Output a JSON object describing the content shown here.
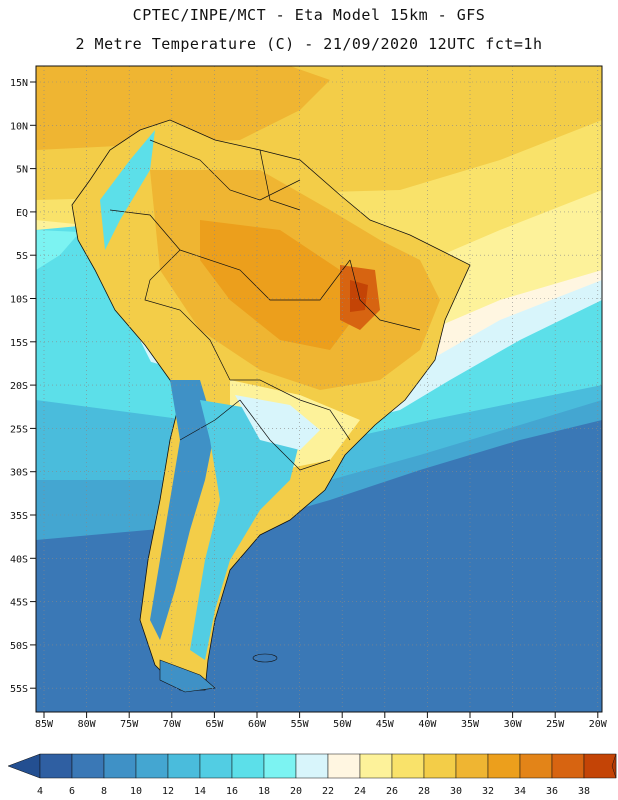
{
  "header": {
    "line1": "CPTEC/INPE/MCT -  Eta Model 15km - GFS",
    "line2": "2 Metre Temperature (C) - 21/09/2020 12UTC fct=1h"
  },
  "map": {
    "lat_labels": [
      "15N",
      "10N",
      "5N",
      "EQ",
      "5S",
      "10S",
      "15S",
      "20S",
      "25S",
      "30S",
      "35S",
      "40S",
      "45S",
      "50S",
      "55S"
    ],
    "lon_labels": [
      "85W",
      "80W",
      "75W",
      "70W",
      "65W",
      "60W",
      "55W",
      "50W",
      "45W",
      "40W",
      "35W",
      "30W",
      "25W",
      "20W"
    ]
  },
  "legend": {
    "values": [
      "4",
      "6",
      "8",
      "10",
      "12",
      "14",
      "16",
      "18",
      "20",
      "22",
      "24",
      "26",
      "28",
      "30",
      "32",
      "34",
      "36",
      "38"
    ],
    "colors": [
      "#2f5fa2",
      "#3a78b6",
      "#3f91c6",
      "#44a6d1",
      "#4abcdc",
      "#52cde3",
      "#5cdfe9",
      "#7cf3f2",
      "#d8f5fb",
      "#fff6e1",
      "#fdf29a",
      "#f9e26a",
      "#f3cd48",
      "#efb532",
      "#ec9f1c",
      "#e38418",
      "#d76411",
      "#c44406"
    ],
    "low_arrow_color": "#234f91",
    "high_arrow_color": "#b33a05"
  }
}
